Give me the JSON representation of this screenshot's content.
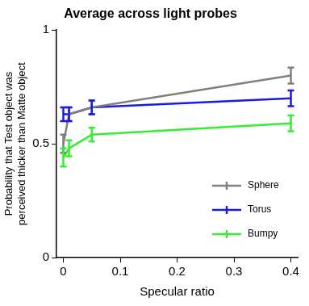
{
  "chart_data": {
    "type": "line",
    "title": "Average across light probes",
    "x_label": "Specular ratio",
    "y_label": [
      "Probability that Test object was",
      "perceived thicker than Matte object"
    ],
    "x": [
      0,
      0.01,
      0.05,
      0.4
    ],
    "series": [
      {
        "name": "Sphere",
        "color": "#808080",
        "values": [
          0.5,
          0.63,
          0.66,
          0.8
        ],
        "errors": [
          0.04,
          0.03,
          0.03,
          0.035
        ]
      },
      {
        "name": "Torus",
        "color": "#1a1ae6",
        "values": [
          0.63,
          0.63,
          0.66,
          0.7
        ],
        "errors": [
          0.03,
          0.03,
          0.03,
          0.035
        ]
      },
      {
        "name": "Bumpy",
        "color": "#33ee33",
        "values": [
          0.44,
          0.48,
          0.54,
          0.59
        ],
        "errors": [
          0.04,
          0.035,
          0.03,
          0.035
        ]
      }
    ],
    "xlim": [
      -0.012,
      0.412
    ],
    "ylim": [
      0,
      1
    ],
    "xticks": [
      0,
      0.1,
      0.2,
      0.3,
      0.4
    ],
    "yticks": [
      0,
      0.5,
      1
    ],
    "grid": false,
    "legend": "lower right"
  }
}
